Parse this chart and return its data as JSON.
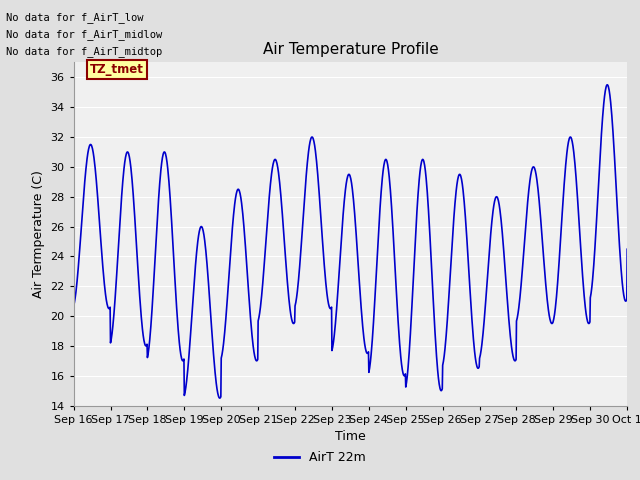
{
  "title": "Air Temperature Profile",
  "xlabel": "Time",
  "ylabel": "Air Termperature (C)",
  "ylim": [
    14,
    37
  ],
  "yticks": [
    14,
    16,
    18,
    20,
    22,
    24,
    26,
    28,
    30,
    32,
    34,
    36
  ],
  "line_color": "#0000CC",
  "line_width": 1.2,
  "background_color": "#E0E0E0",
  "plot_bg_color": "#F0F0F0",
  "legend_label": "AirT 22m",
  "no_data_texts": [
    "No data for f_AirT_low",
    "No data for f_AirT_midlow",
    "No data for f_AirT_midtop"
  ],
  "tz_label": "TZ_tmet",
  "x_tick_labels": [
    "Sep 16",
    "Sep 17",
    "Sep 18",
    "Sep 19",
    "Sep 20",
    "Sep 21",
    "Sep 22",
    "Sep 23",
    "Sep 24",
    "Sep 25",
    "Sep 26",
    "Sep 27",
    "Sep 28",
    "Sep 29",
    "Sep 30",
    "Oct 1"
  ],
  "x_tick_positions": [
    0,
    1,
    2,
    3,
    4,
    5,
    6,
    7,
    8,
    9,
    10,
    11,
    12,
    13,
    14,
    15
  ],
  "day_peaks": [
    31.5,
    31.0,
    31.0,
    26.0,
    28.5,
    30.5,
    32.0,
    29.5,
    30.5,
    30.5,
    29.5,
    28.0,
    30.0,
    32.0,
    35.5,
    24.5
  ],
  "day_troughs": [
    20.5,
    18.0,
    17.0,
    14.5,
    17.0,
    19.5,
    20.5,
    17.5,
    16.0,
    15.0,
    16.5,
    17.0,
    19.5,
    19.5,
    21.0,
    24.5
  ]
}
